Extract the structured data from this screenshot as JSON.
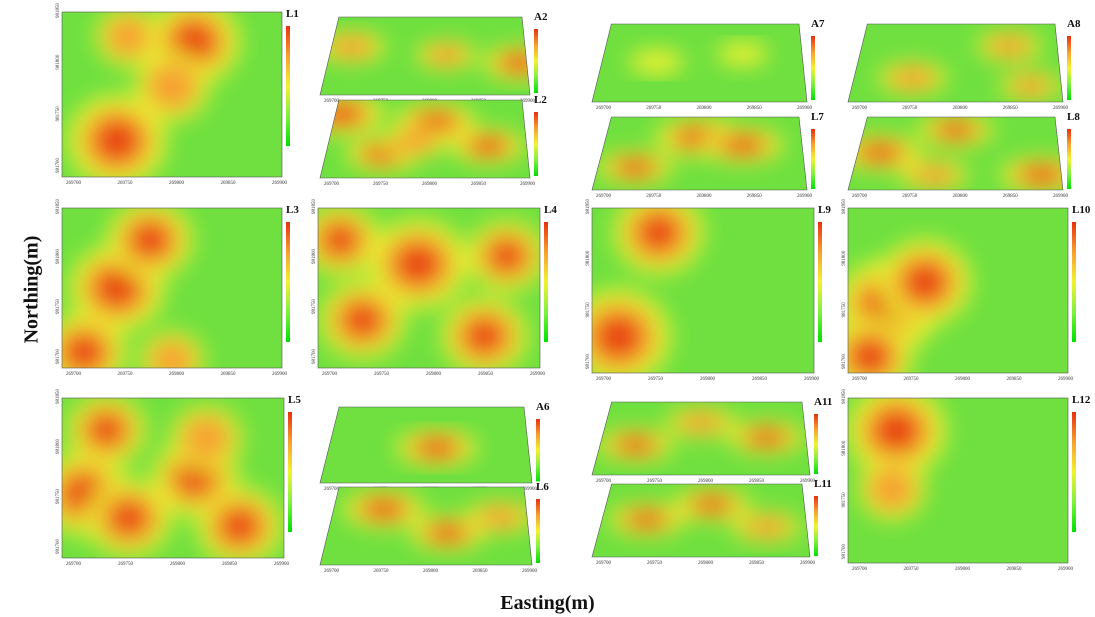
{
  "figure": {
    "ylabel": "Northing(m)",
    "xlabel": "Easting(m)"
  },
  "chart_data": {
    "type": "heatmap",
    "colorscale": [
      "#00e000",
      "#80f040",
      "#f2f230",
      "#f6a030",
      "#e83010"
    ],
    "x_ticks": [
      "269700",
      "269750",
      "269800",
      "269850",
      "269900"
    ],
    "y_ticks": [
      "981700",
      "981750",
      "981800",
      "981850"
    ],
    "panels": [
      {
        "id": "L1",
        "label": "L1",
        "view": "flat",
        "hot": [
          [
            0.25,
            0.78,
            0.9
          ],
          [
            0.6,
            0.18,
            0.8
          ],
          [
            0.5,
            0.45,
            0.55
          ],
          [
            0.3,
            0.15,
            0.4
          ]
        ]
      },
      {
        "id": "A2",
        "label": "A2",
        "view": "persp",
        "hot": [
          [
            0.15,
            0.4,
            0.5
          ],
          [
            0.6,
            0.5,
            0.4
          ],
          [
            0.95,
            0.6,
            0.6
          ]
        ]
      },
      {
        "id": "L2",
        "label": "L2",
        "view": "persp",
        "hot": [
          [
            0.1,
            0.2,
            0.8
          ],
          [
            0.3,
            0.7,
            0.6
          ],
          [
            0.55,
            0.3,
            0.7
          ],
          [
            0.8,
            0.6,
            0.6
          ],
          [
            0.45,
            0.55,
            0.5
          ]
        ]
      },
      {
        "id": "L3",
        "label": "L3",
        "view": "flat",
        "hot": [
          [
            0.25,
            0.5,
            0.85
          ],
          [
            0.4,
            0.2,
            0.7
          ],
          [
            0.1,
            0.9,
            0.7
          ],
          [
            0.5,
            0.95,
            0.4
          ]
        ]
      },
      {
        "id": "L4",
        "label": "L4",
        "view": "flat",
        "hot": [
          [
            0.45,
            0.35,
            0.9
          ],
          [
            0.2,
            0.7,
            0.7
          ],
          [
            0.75,
            0.8,
            0.7
          ],
          [
            0.1,
            0.2,
            0.6
          ],
          [
            0.85,
            0.3,
            0.6
          ]
        ]
      },
      {
        "id": "A7",
        "label": "A7",
        "view": "persp",
        "hot": [
          [
            0.3,
            0.5,
            0.3
          ],
          [
            0.7,
            0.4,
            0.25
          ]
        ]
      },
      {
        "id": "L7",
        "label": "L7",
        "view": "persp",
        "hot": [
          [
            0.5,
            0.3,
            0.8
          ],
          [
            0.2,
            0.7,
            0.6
          ],
          [
            0.7,
            0.4,
            0.7
          ]
        ]
      },
      {
        "id": "A8",
        "label": "A8",
        "view": "persp",
        "hot": [
          [
            0.3,
            0.7,
            0.5
          ],
          [
            0.75,
            0.3,
            0.45
          ],
          [
            0.85,
            0.8,
            0.4
          ]
        ]
      },
      {
        "id": "L8",
        "label": "L8",
        "view": "persp",
        "hot": [
          [
            0.15,
            0.5,
            0.7
          ],
          [
            0.5,
            0.2,
            0.6
          ],
          [
            0.9,
            0.8,
            0.7
          ],
          [
            0.4,
            0.8,
            0.5
          ]
        ]
      },
      {
        "id": "L9",
        "label": "L9",
        "view": "flat",
        "hot": [
          [
            0.12,
            0.78,
            0.95
          ],
          [
            0.3,
            0.15,
            0.75
          ]
        ]
      },
      {
        "id": "L10",
        "label": "L10",
        "view": "flat",
        "hot": [
          [
            0.18,
            0.6,
            0.95
          ],
          [
            0.35,
            0.45,
            0.8
          ],
          [
            0.1,
            0.9,
            0.7
          ]
        ]
      },
      {
        "id": "L5",
        "label": "L5",
        "view": "flat",
        "hot": [
          [
            0.1,
            0.6,
            0.8
          ],
          [
            0.3,
            0.75,
            0.7
          ],
          [
            0.6,
            0.5,
            0.7
          ],
          [
            0.8,
            0.8,
            0.7
          ],
          [
            0.2,
            0.2,
            0.6
          ],
          [
            0.65,
            0.25,
            0.5
          ]
        ]
      },
      {
        "id": "A6",
        "label": "A6",
        "view": "persp",
        "hot": [
          [
            0.55,
            0.55,
            0.7
          ]
        ]
      },
      {
        "id": "L6",
        "label": "L6",
        "view": "persp",
        "hot": [
          [
            0.3,
            0.3,
            0.7
          ],
          [
            0.6,
            0.6,
            0.6
          ],
          [
            0.85,
            0.4,
            0.5
          ]
        ]
      },
      {
        "id": "A11",
        "label": "A11",
        "view": "persp",
        "hot": [
          [
            0.2,
            0.6,
            0.6
          ],
          [
            0.5,
            0.3,
            0.5
          ],
          [
            0.8,
            0.5,
            0.6
          ]
        ]
      },
      {
        "id": "L11",
        "label": "L11",
        "view": "persp",
        "hot": [
          [
            0.25,
            0.5,
            0.6
          ],
          [
            0.55,
            0.3,
            0.6
          ],
          [
            0.8,
            0.6,
            0.5
          ]
        ]
      },
      {
        "id": "L12",
        "label": "L12",
        "view": "flat",
        "hot": [
          [
            0.22,
            0.2,
            0.9
          ],
          [
            0.2,
            0.55,
            0.45
          ]
        ]
      }
    ]
  }
}
